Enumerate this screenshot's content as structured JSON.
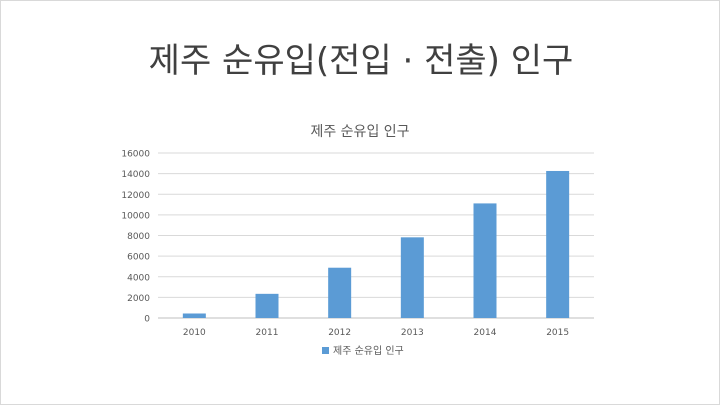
{
  "slide": {
    "title": "제주 순유입(전입 · 전출) 인구"
  },
  "chart_data": {
    "type": "bar",
    "title": "제주 순유입 인구",
    "categories": [
      "2010",
      "2011",
      "2012",
      "2013",
      "2014",
      "2015"
    ],
    "series": [
      {
        "name": "제주 순유입 인구",
        "values": [
          437,
          2343,
          4876,
          7823,
          11112,
          14257
        ]
      }
    ],
    "ylim": [
      0,
      16000
    ],
    "yticks": [
      0,
      2000,
      4000,
      6000,
      8000,
      10000,
      12000,
      14000,
      16000
    ],
    "grid": true,
    "legend_position": "bottom",
    "bar_color": "#5b9bd5",
    "xlabel": "",
    "ylabel": ""
  }
}
